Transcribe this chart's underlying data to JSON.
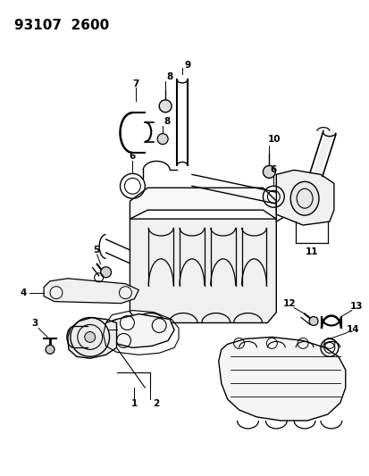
{
  "title": "93107  2600",
  "bg_color": "#ffffff",
  "line_color": "#000000",
  "title_fontsize": 11,
  "label_fontsize": 7.5,
  "label_fontweight": "bold",
  "fig_w": 4.14,
  "fig_h": 5.33,
  "dpi": 100
}
